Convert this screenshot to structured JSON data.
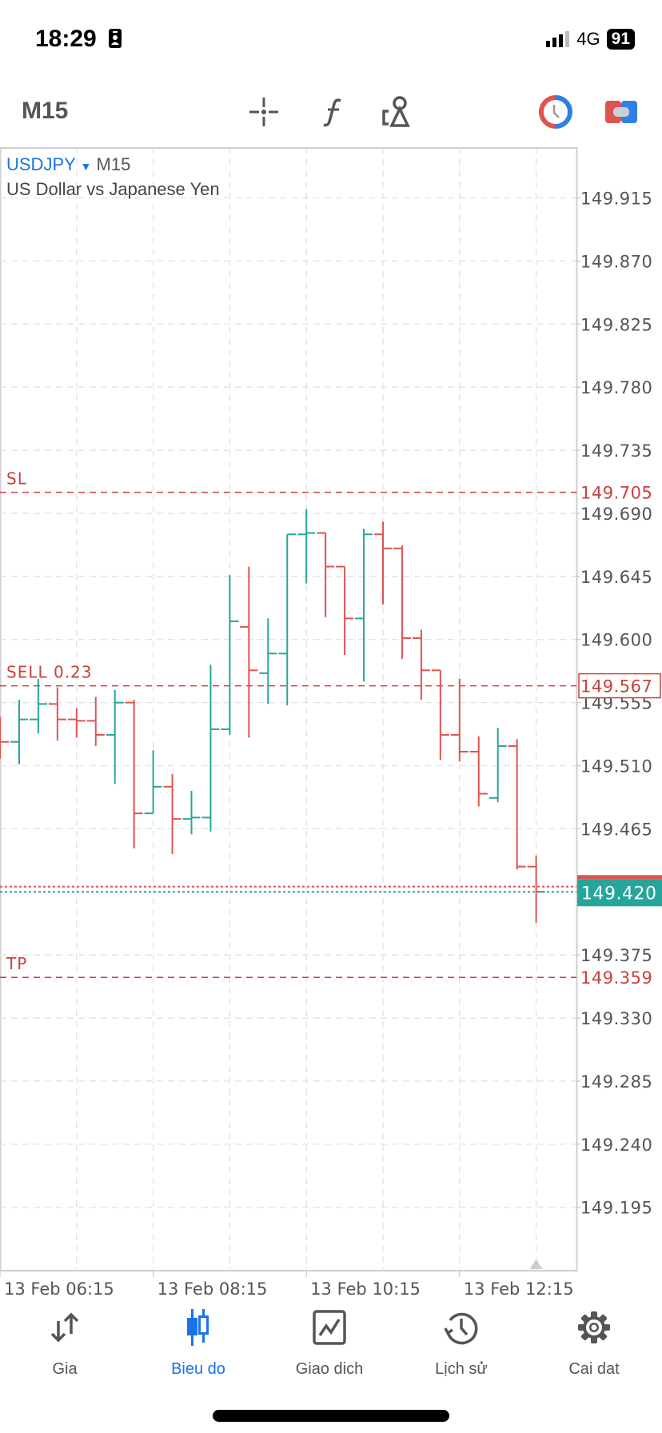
{
  "status_bar": {
    "time": "18:29",
    "network": "4G",
    "battery": "91"
  },
  "toolbar": {
    "timeframe": "M15",
    "icons": [
      "crosshair-icon",
      "function-icon",
      "objects-icon",
      "trade-clock-icon",
      "account-toggle-icon"
    ]
  },
  "chart_header": {
    "symbol": "USDJPY",
    "timeframe": "M15",
    "description": "US Dollar vs Japanese Yen"
  },
  "colors": {
    "bull": "#26a69a",
    "bear": "#e0534f",
    "accent": "#1a73e8",
    "grid": "#e2e2e2"
  },
  "chart_data": {
    "type": "ohlc",
    "ylim": [
      149.15,
      149.955
    ],
    "price_ticks": [
      "149.915",
      "149.870",
      "149.825",
      "149.780",
      "149.735",
      "149.690",
      "149.645",
      "149.600",
      "149.555",
      "149.510",
      "149.465",
      "149.375",
      "149.330",
      "149.285",
      "149.240",
      "149.195"
    ],
    "time_labels": [
      "13 Feb 06:15",
      "13 Feb 08:15",
      "13 Feb 10:15",
      "13 Feb 12:15"
    ],
    "bars": [
      {
        "o": 149.533,
        "h": 149.545,
        "l": 149.515,
        "c": 149.527
      },
      {
        "o": 149.527,
        "h": 149.557,
        "l": 149.511,
        "c": 149.543
      },
      {
        "o": 149.543,
        "h": 149.572,
        "l": 149.533,
        "c": 149.554
      },
      {
        "o": 149.554,
        "h": 149.566,
        "l": 149.528,
        "c": 149.543
      },
      {
        "o": 149.543,
        "h": 149.551,
        "l": 149.53,
        "c": 149.542
      },
      {
        "o": 149.542,
        "h": 149.559,
        "l": 149.524,
        "c": 149.532
      },
      {
        "o": 149.532,
        "h": 149.564,
        "l": 149.497,
        "c": 149.555
      },
      {
        "o": 149.555,
        "h": 149.557,
        "l": 149.451,
        "c": 149.476
      },
      {
        "o": 149.476,
        "h": 149.521,
        "l": 149.476,
        "c": 149.495
      },
      {
        "o": 149.495,
        "h": 149.504,
        "l": 149.447,
        "c": 149.472
      },
      {
        "o": 149.472,
        "h": 149.492,
        "l": 149.461,
        "c": 149.473
      },
      {
        "o": 149.473,
        "h": 149.582,
        "l": 149.463,
        "c": 149.536
      },
      {
        "o": 149.536,
        "h": 149.646,
        "l": 149.532,
        "c": 149.613
      },
      {
        "o": 149.609,
        "h": 149.652,
        "l": 149.53,
        "c": 149.578
      },
      {
        "o": 149.576,
        "h": 149.615,
        "l": 149.554,
        "c": 149.59
      },
      {
        "o": 149.59,
        "h": 149.675,
        "l": 149.553,
        "c": 149.675
      },
      {
        "o": 149.675,
        "h": 149.693,
        "l": 149.64,
        "c": 149.676
      },
      {
        "o": 149.676,
        "h": 149.676,
        "l": 149.616,
        "c": 149.652
      },
      {
        "o": 149.652,
        "h": 149.652,
        "l": 149.589,
        "c": 149.615
      },
      {
        "o": 149.615,
        "h": 149.679,
        "l": 149.57,
        "c": 149.675
      },
      {
        "o": 149.675,
        "h": 149.684,
        "l": 149.625,
        "c": 149.665
      },
      {
        "o": 149.665,
        "h": 149.667,
        "l": 149.586,
        "c": 149.601
      },
      {
        "o": 149.601,
        "h": 149.607,
        "l": 149.557,
        "c": 149.578
      },
      {
        "o": 149.578,
        "h": 149.578,
        "l": 149.514,
        "c": 149.532
      },
      {
        "o": 149.532,
        "h": 149.572,
        "l": 149.513,
        "c": 149.52
      },
      {
        "o": 149.52,
        "h": 149.531,
        "l": 149.481,
        "c": 149.49
      },
      {
        "o": 149.487,
        "h": 149.537,
        "l": 149.484,
        "c": 149.524
      },
      {
        "o": 149.524,
        "h": 149.529,
        "l": 149.436,
        "c": 149.438
      },
      {
        "o": 149.438,
        "h": 149.446,
        "l": 149.398,
        "c": 149.42
      }
    ],
    "levels": [
      {
        "label": "SL",
        "price": "149.705",
        "value": 149.705,
        "color": "#c9413d"
      },
      {
        "label": "SELL 0.23",
        "price": "149.567",
        "value": 149.567,
        "color": "#c9413d",
        "boxed": true
      },
      {
        "label": "TP",
        "price": "149.359",
        "value": 149.359,
        "color": "#c9413d"
      }
    ],
    "bid": {
      "price": "149.420",
      "value": 149.42
    },
    "ask": {
      "value": 149.422
    }
  },
  "nav": [
    {
      "label": "Gia",
      "icon": "quotes-arrows-icon"
    },
    {
      "label": "Bieu do",
      "icon": "chart-candles-icon",
      "active": true
    },
    {
      "label": "Giao dich",
      "icon": "trade-chart-icon"
    },
    {
      "label": "Lịch sử",
      "icon": "history-clock-icon"
    },
    {
      "label": "Cai dat",
      "icon": "settings-gear-icon"
    }
  ]
}
